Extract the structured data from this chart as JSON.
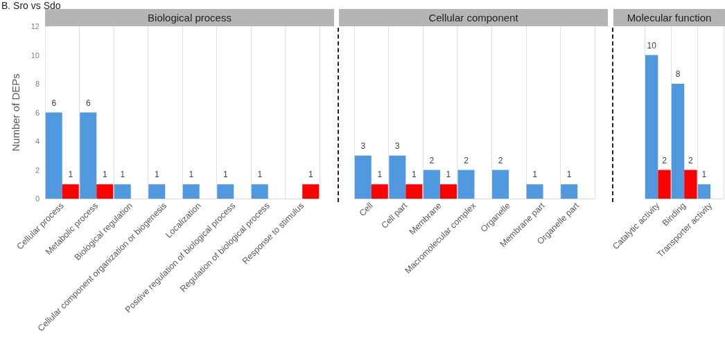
{
  "chart_data": [
    {
      "type": "bar",
      "title": "Biological process",
      "annotations": [
        "B. Sro vs Sdo"
      ],
      "ylabel": "Number of DEPs",
      "categories": [
        "Cellular process",
        "Metabolic process",
        "Biological regulation",
        "Cellular component organization or biogenesis",
        "Localization",
        "Positive regulation of biological process",
        "Regulation of biological process",
        "Response to stimulus"
      ],
      "series": [
        {
          "color": "#5199df",
          "values": [
            6,
            6,
            1,
            1,
            1,
            1,
            1,
            null
          ]
        },
        {
          "color": "#ff0000",
          "values": [
            1,
            1,
            null,
            null,
            null,
            null,
            null,
            1
          ]
        }
      ],
      "ylim": [
        0,
        12
      ],
      "yticks": [
        0,
        2,
        4,
        6,
        8,
        10,
        12
      ],
      "grid": "x",
      "data_labels": true
    },
    {
      "type": "bar",
      "title": "Cellular component",
      "categories": [
        "Cell",
        "Cell part",
        "Membrane",
        "Macromolecular complex",
        "Organelle",
        "Membrane part",
        "Organelle part"
      ],
      "series": [
        {
          "color": "#5199df",
          "values": [
            3,
            3,
            2,
            2,
            2,
            1,
            1
          ]
        },
        {
          "color": "#ff0000",
          "values": [
            1,
            1,
            1,
            null,
            null,
            null,
            null
          ]
        }
      ],
      "ylim": [
        0,
        12
      ],
      "yticks": [
        0,
        2,
        4,
        6,
        8,
        10,
        12
      ],
      "grid": "x",
      "data_labels": true,
      "tick_labels": "x"
    },
    {
      "type": "bar",
      "title": "Molecular function",
      "categories": [
        "Catalytic activity",
        "Binding",
        "Transporter activity"
      ],
      "series": [
        {
          "color": "#5199df",
          "values": [
            10,
            8,
            1
          ]
        },
        {
          "color": "#ff0000",
          "values": [
            2,
            2,
            null
          ]
        }
      ],
      "ylim": [
        0,
        12
      ],
      "yticks": [
        0,
        2,
        4,
        6,
        8,
        10,
        12
      ],
      "grid": "x",
      "data_labels": true,
      "tick_labels": "x"
    }
  ]
}
